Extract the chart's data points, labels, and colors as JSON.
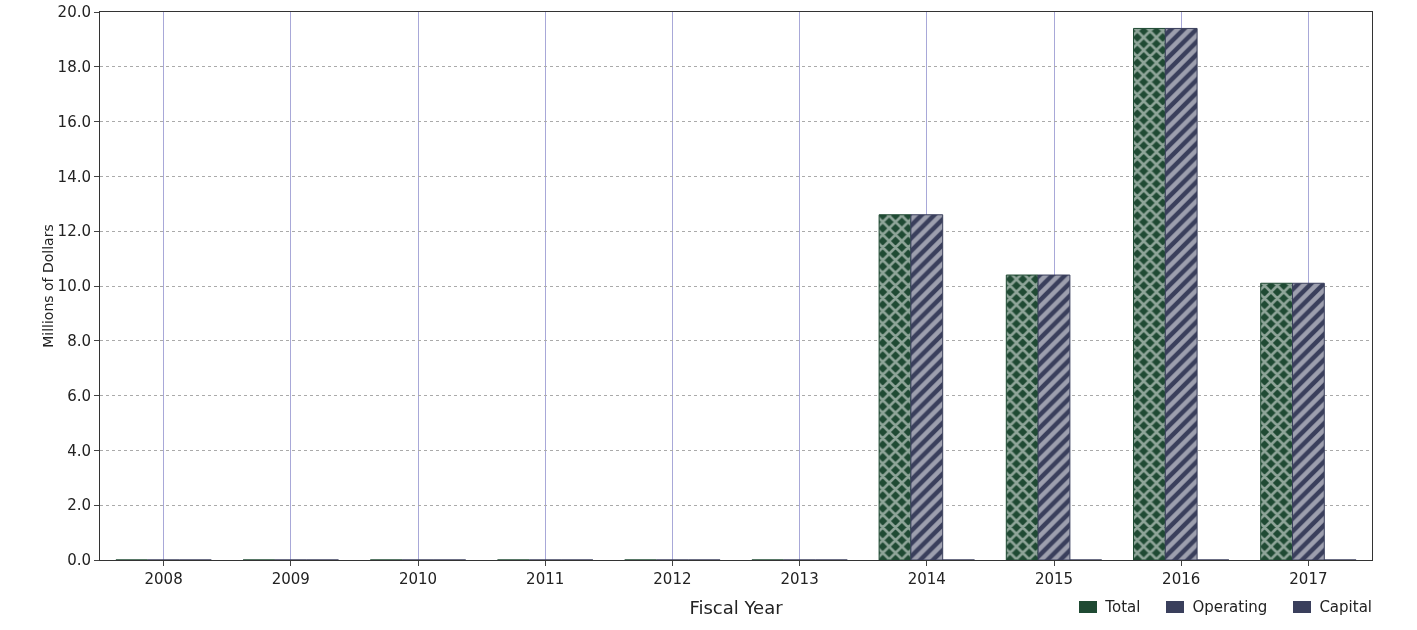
{
  "chart_data": {
    "type": "bar",
    "categories": [
      "2008",
      "2009",
      "2010",
      "2011",
      "2012",
      "2013",
      "2014",
      "2015",
      "2016",
      "2017"
    ],
    "series": [
      {
        "name": "Total",
        "color": "#1f4a33",
        "values": [
          0,
          0,
          0,
          0,
          0,
          0,
          12.6,
          10.4,
          19.4,
          10.1
        ]
      },
      {
        "name": "Operating",
        "color": "#3a3f5c",
        "values": [
          0,
          0,
          0,
          0,
          0,
          0,
          12.6,
          10.4,
          19.4,
          10.1
        ]
      },
      {
        "name": "Capital",
        "color": "#3a3f5c",
        "values": [
          0,
          0,
          0,
          0,
          0,
          0,
          0,
          0,
          0,
          0
        ]
      }
    ],
    "xlabel": "Fiscal Year",
    "ylabel": "Millions of Dollars",
    "ylim": [
      0,
      20
    ],
    "yticks": [
      {
        "value": 0,
        "label": "0.0"
      },
      {
        "value": 2,
        "label": "2.0"
      },
      {
        "value": 4,
        "label": "4.0"
      },
      {
        "value": 6,
        "label": "6.0"
      },
      {
        "value": 8,
        "label": "8.0"
      },
      {
        "value": 10,
        "label": "10.0"
      },
      {
        "value": 12,
        "label": "12.0"
      },
      {
        "value": 14,
        "label": "14.0"
      },
      {
        "value": 16,
        "label": "16.0"
      },
      {
        "value": 18,
        "label": "18.0"
      },
      {
        "value": 20,
        "label": "20.0"
      }
    ],
    "grid": true,
    "legend": "bottom right"
  }
}
